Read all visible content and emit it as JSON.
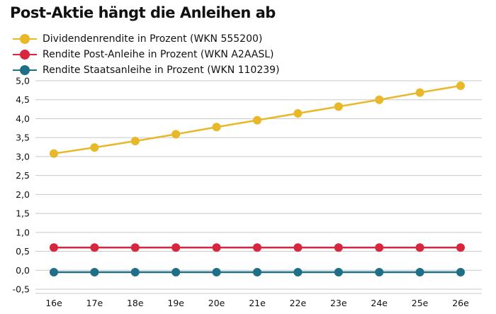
{
  "chart_data": {
    "type": "line",
    "title": "Post-Aktie hängt die Anleihen ab",
    "categories": [
      "16e",
      "17e",
      "18e",
      "19e",
      "20e",
      "21e",
      "22e",
      "23e",
      "24e",
      "25e",
      "26e"
    ],
    "ylim": [
      -0.5,
      5.0
    ],
    "yticks": [
      "5,0",
      "4,5",
      "4,0",
      "3,5",
      "3,0",
      "2,5",
      "2,0",
      "1,5",
      "1,0",
      "0,5",
      "0,0",
      "-0,5"
    ],
    "grid": true,
    "legend_position": "top-left",
    "series": [
      {
        "name": "Dividendenrendite in Prozent (WKN 555200)",
        "color": "#e8b828",
        "values": [
          3.08,
          3.24,
          3.41,
          3.59,
          3.78,
          3.96,
          4.14,
          4.32,
          4.5,
          4.69,
          4.87
        ]
      },
      {
        "name": "Rendite Post-Anleihe in Prozent (WKN A2AASL)",
        "color": "#d7263d",
        "values": [
          0.6,
          0.6,
          0.6,
          0.6,
          0.6,
          0.6,
          0.6,
          0.6,
          0.6,
          0.6,
          0.6
        ]
      },
      {
        "name": "Rendite Staatsanleihe in Prozent (WKN 110239)",
        "color": "#1f6f86",
        "values": [
          -0.05,
          -0.05,
          -0.05,
          -0.05,
          -0.05,
          -0.05,
          -0.05,
          -0.05,
          -0.05,
          -0.05,
          -0.05
        ]
      }
    ]
  }
}
